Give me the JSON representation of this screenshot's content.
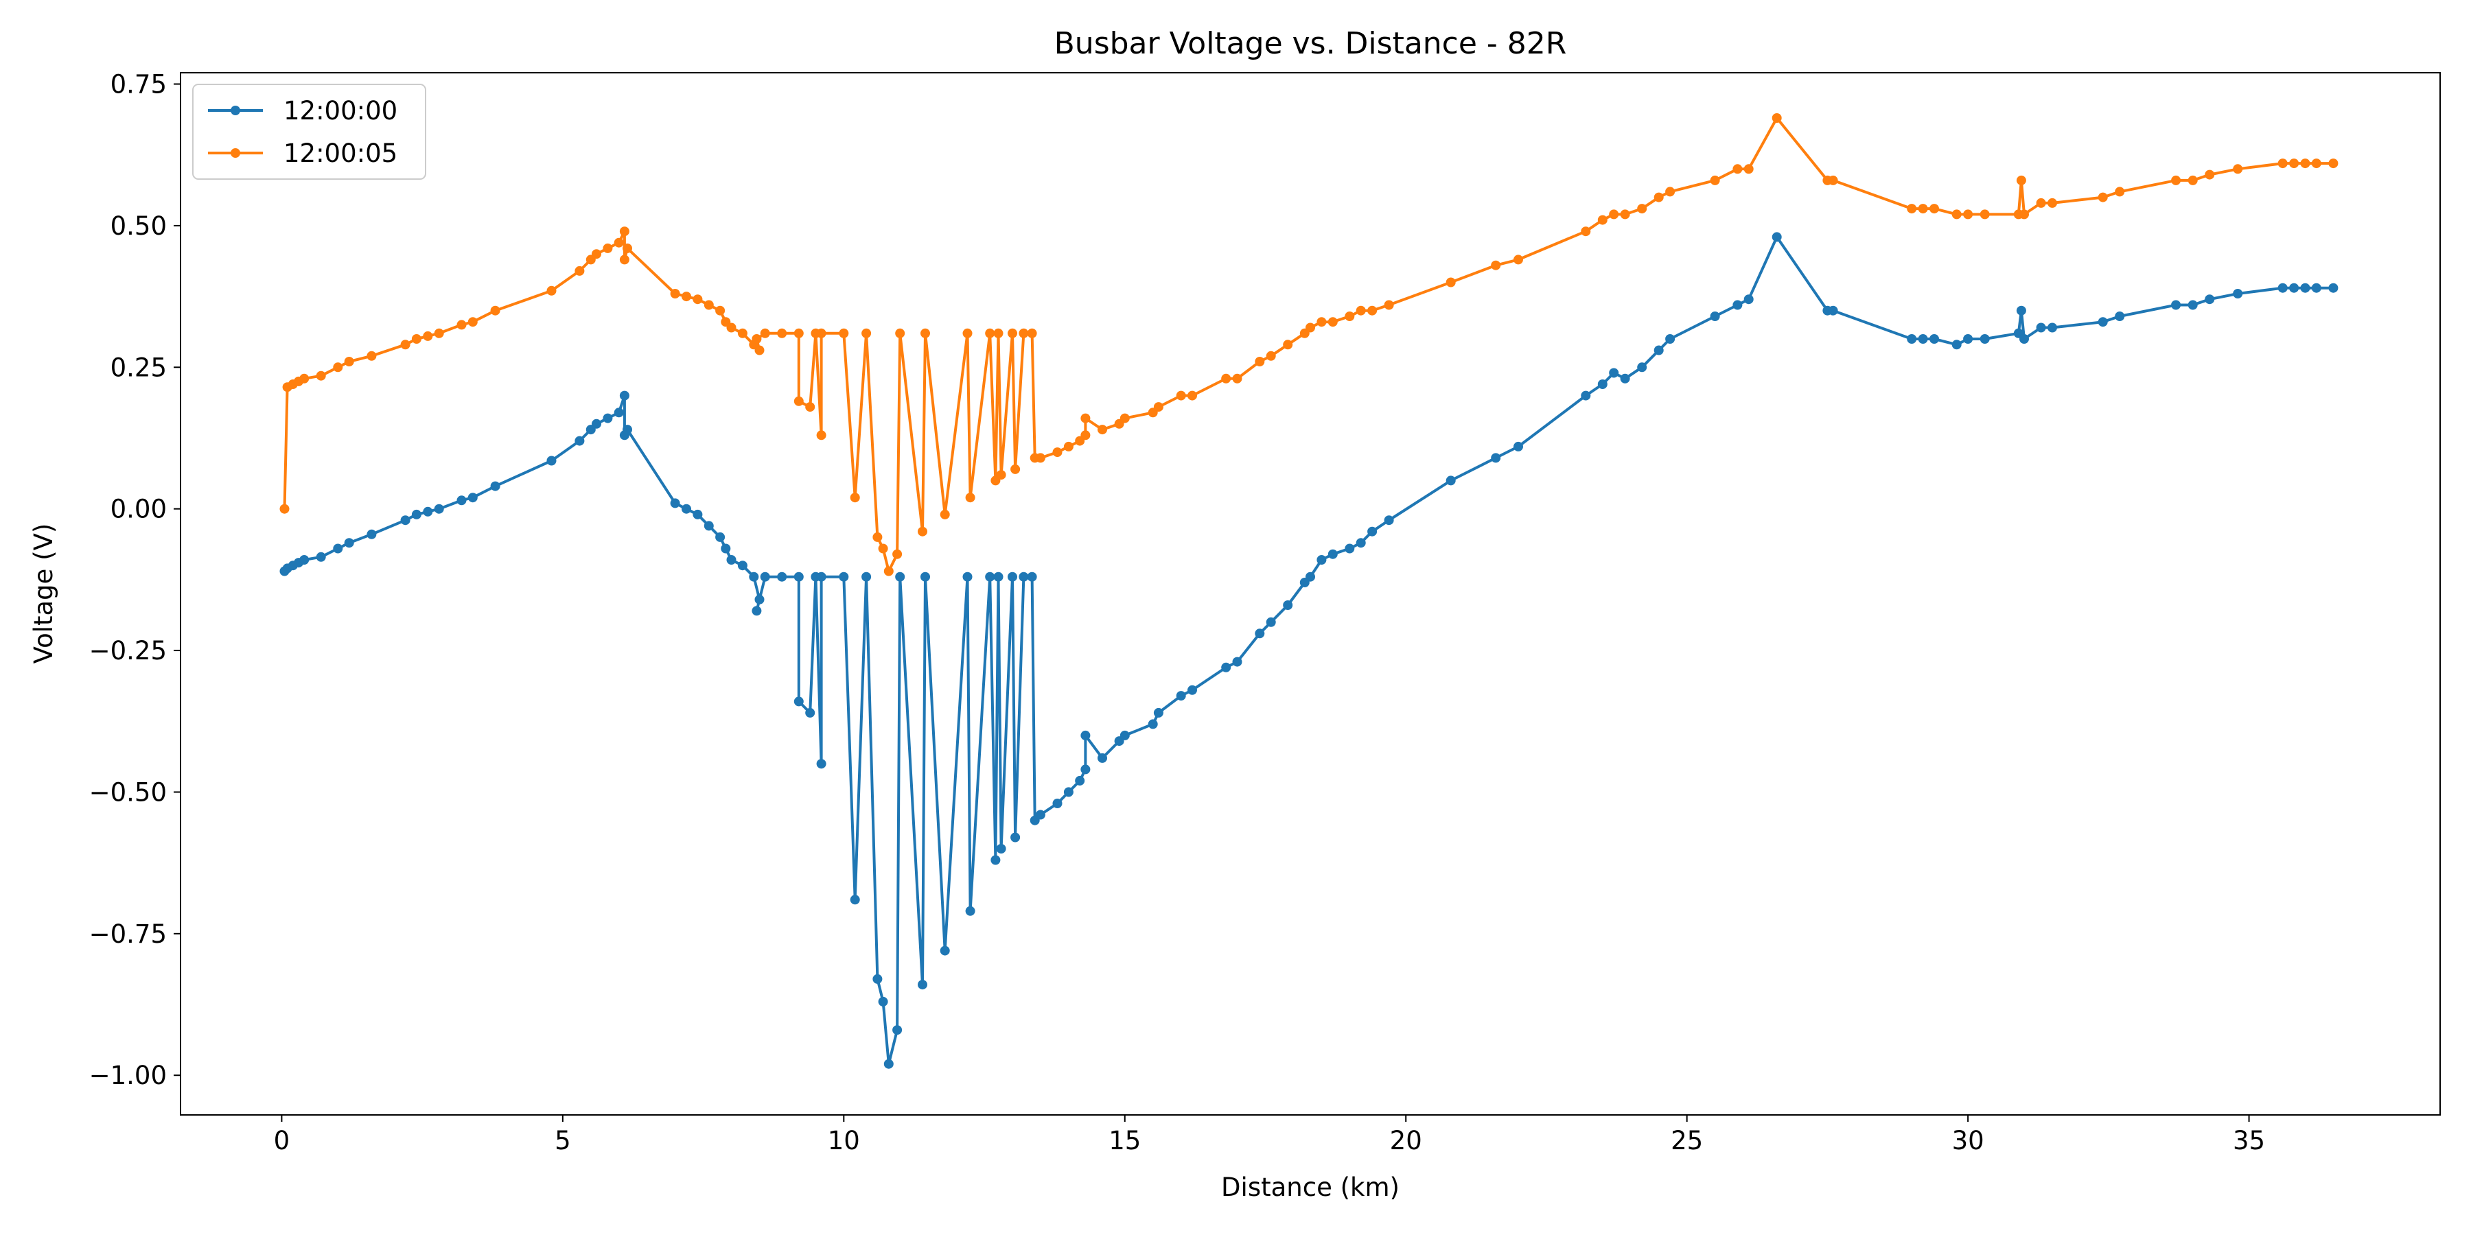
{
  "chart_data": {
    "type": "line",
    "title": "Busbar Voltage vs. Distance - 82R",
    "xlabel": "Distance (km)",
    "ylabel": "Voltage (V)",
    "xlim": [
      -1.8,
      38.4
    ],
    "ylim": [
      -1.07,
      0.77
    ],
    "xticks": [
      0,
      5,
      10,
      15,
      20,
      25,
      30,
      35
    ],
    "yticks": [
      0.75,
      0.5,
      0.25,
      0.0,
      -0.25,
      -0.5,
      -0.75,
      -1.0
    ],
    "xtick_labels": [
      "0",
      "5",
      "10",
      "15",
      "20",
      "25",
      "30",
      "35"
    ],
    "ytick_labels": [
      "0.75",
      "0.50",
      "0.25",
      "0.00",
      "−0.25",
      "−0.50",
      "−0.75",
      "−1.00"
    ],
    "grid": false,
    "legend_position": "top-left",
    "markers": true,
    "series": [
      {
        "name": "12:00:00",
        "color": "#1f77b4",
        "x": [
          0.05,
          0.1,
          0.2,
          0.3,
          0.4,
          0.7,
          1.0,
          1.2,
          1.6,
          2.2,
          2.4,
          2.6,
          2.8,
          3.2,
          3.4,
          3.8,
          4.8,
          5.3,
          5.5,
          5.6,
          5.8,
          6.0,
          6.1,
          6.1,
          6.15,
          7.0,
          7.2,
          7.4,
          7.6,
          7.8,
          7.9,
          8.0,
          8.2,
          8.4,
          8.5,
          8.45,
          8.6,
          8.9,
          9.2,
          9.2,
          9.4,
          9.5,
          9.6,
          9.6,
          10.0,
          10.2,
          10.4,
          10.6,
          10.7,
          10.8,
          10.95,
          11.0,
          11.4,
          11.45,
          11.8,
          12.2,
          12.25,
          12.6,
          12.7,
          12.75,
          12.8,
          13.0,
          13.05,
          13.2,
          13.35,
          13.4,
          13.5,
          13.8,
          14.0,
          14.2,
          14.3,
          14.3,
          14.6,
          14.9,
          15.0,
          15.5,
          15.6,
          16.0,
          16.2,
          16.8,
          17.0,
          17.4,
          17.6,
          17.9,
          18.2,
          18.3,
          18.5,
          18.7,
          19.0,
          19.2,
          19.4,
          19.7,
          20.8,
          21.6,
          22.0,
          23.2,
          23.5,
          23.7,
          23.9,
          24.2,
          24.5,
          24.7,
          25.5,
          25.9,
          26.1,
          26.6,
          27.5,
          27.6,
          29.0,
          29.2,
          29.4,
          29.8,
          30.0,
          30.3,
          30.9,
          30.95,
          31.0,
          31.3,
          31.5,
          32.4,
          32.7,
          33.7,
          34.0,
          34.3,
          34.8,
          35.6,
          35.8,
          36.0,
          36.2,
          36.5
        ],
        "y": [
          -0.11,
          -0.105,
          -0.1,
          -0.095,
          -0.09,
          -0.085,
          -0.07,
          -0.06,
          -0.045,
          -0.02,
          -0.01,
          -0.005,
          0.0,
          0.015,
          0.02,
          0.04,
          0.085,
          0.12,
          0.14,
          0.15,
          0.16,
          0.17,
          0.2,
          0.13,
          0.14,
          0.01,
          0.0,
          -0.01,
          -0.03,
          -0.05,
          -0.07,
          -0.09,
          -0.1,
          -0.12,
          -0.16,
          -0.18,
          -0.12,
          -0.12,
          -0.12,
          -0.34,
          -0.36,
          -0.12,
          -0.45,
          -0.12,
          -0.12,
          -0.69,
          -0.12,
          -0.83,
          -0.87,
          -0.98,
          -0.92,
          -0.12,
          -0.84,
          -0.12,
          -0.78,
          -0.12,
          -0.71,
          -0.12,
          -0.62,
          -0.12,
          -0.6,
          -0.12,
          -0.58,
          -0.12,
          -0.12,
          -0.55,
          -0.54,
          -0.52,
          -0.5,
          -0.48,
          -0.46,
          -0.4,
          -0.44,
          -0.41,
          -0.4,
          -0.38,
          -0.36,
          -0.33,
          -0.32,
          -0.28,
          -0.27,
          -0.22,
          -0.2,
          -0.17,
          -0.13,
          -0.12,
          -0.09,
          -0.08,
          -0.07,
          -0.06,
          -0.04,
          -0.02,
          0.05,
          0.09,
          0.11,
          0.2,
          0.22,
          0.24,
          0.23,
          0.25,
          0.28,
          0.3,
          0.34,
          0.36,
          0.37,
          0.48,
          0.35,
          0.35,
          0.3,
          0.3,
          0.3,
          0.29,
          0.3,
          0.3,
          0.31,
          0.35,
          0.3,
          0.32,
          0.32,
          0.33,
          0.34,
          0.36,
          0.36,
          0.37,
          0.38,
          0.39,
          0.39,
          0.39,
          0.39,
          0.39
        ]
      },
      {
        "name": "12:00:05",
        "color": "#ff7f0e",
        "x": [
          0.05,
          0.1,
          0.2,
          0.3,
          0.4,
          0.7,
          1.0,
          1.2,
          1.6,
          2.2,
          2.4,
          2.6,
          2.8,
          3.2,
          3.4,
          3.8,
          4.8,
          5.3,
          5.5,
          5.6,
          5.8,
          6.0,
          6.1,
          6.1,
          6.15,
          7.0,
          7.2,
          7.4,
          7.6,
          7.8,
          7.9,
          8.0,
          8.2,
          8.4,
          8.5,
          8.45,
          8.6,
          8.9,
          9.2,
          9.2,
          9.4,
          9.5,
          9.6,
          9.6,
          10.0,
          10.2,
          10.4,
          10.6,
          10.7,
          10.8,
          10.95,
          11.0,
          11.4,
          11.45,
          11.8,
          12.2,
          12.25,
          12.6,
          12.7,
          12.75,
          12.8,
          13.0,
          13.05,
          13.2,
          13.35,
          13.4,
          13.5,
          13.8,
          14.0,
          14.2,
          14.3,
          14.3,
          14.6,
          14.9,
          15.0,
          15.5,
          15.6,
          16.0,
          16.2,
          16.8,
          17.0,
          17.4,
          17.6,
          17.9,
          18.2,
          18.3,
          18.5,
          18.7,
          19.0,
          19.2,
          19.4,
          19.7,
          20.8,
          21.6,
          22.0,
          23.2,
          23.5,
          23.7,
          23.9,
          24.2,
          24.5,
          24.7,
          25.5,
          25.9,
          26.1,
          26.6,
          27.5,
          27.6,
          29.0,
          29.2,
          29.4,
          29.8,
          30.0,
          30.3,
          30.9,
          30.95,
          31.0,
          31.3,
          31.5,
          32.4,
          32.7,
          33.7,
          34.0,
          34.3,
          34.8,
          35.6,
          35.8,
          36.0,
          36.2,
          36.5
        ],
        "y": [
          0.0,
          0.215,
          0.22,
          0.225,
          0.23,
          0.235,
          0.25,
          0.26,
          0.27,
          0.29,
          0.3,
          0.305,
          0.31,
          0.325,
          0.33,
          0.35,
          0.385,
          0.42,
          0.44,
          0.45,
          0.46,
          0.47,
          0.49,
          0.44,
          0.46,
          0.38,
          0.375,
          0.37,
          0.36,
          0.35,
          0.33,
          0.32,
          0.31,
          0.29,
          0.28,
          0.3,
          0.31,
          0.31,
          0.31,
          0.19,
          0.18,
          0.31,
          0.13,
          0.31,
          0.31,
          0.02,
          0.31,
          -0.05,
          -0.07,
          -0.11,
          -0.08,
          0.31,
          -0.04,
          0.31,
          -0.01,
          0.31,
          0.02,
          0.31,
          0.05,
          0.31,
          0.06,
          0.31,
          0.07,
          0.31,
          0.31,
          0.09,
          0.09,
          0.1,
          0.11,
          0.12,
          0.13,
          0.16,
          0.14,
          0.15,
          0.16,
          0.17,
          0.18,
          0.2,
          0.2,
          0.23,
          0.23,
          0.26,
          0.27,
          0.29,
          0.31,
          0.32,
          0.33,
          0.33,
          0.34,
          0.35,
          0.35,
          0.36,
          0.4,
          0.43,
          0.44,
          0.49,
          0.51,
          0.52,
          0.52,
          0.53,
          0.55,
          0.56,
          0.58,
          0.6,
          0.6,
          0.69,
          0.58,
          0.58,
          0.53,
          0.53,
          0.53,
          0.52,
          0.52,
          0.52,
          0.52,
          0.58,
          0.52,
          0.54,
          0.54,
          0.55,
          0.56,
          0.58,
          0.58,
          0.59,
          0.6,
          0.61,
          0.61,
          0.61,
          0.61,
          0.61
        ]
      }
    ]
  }
}
